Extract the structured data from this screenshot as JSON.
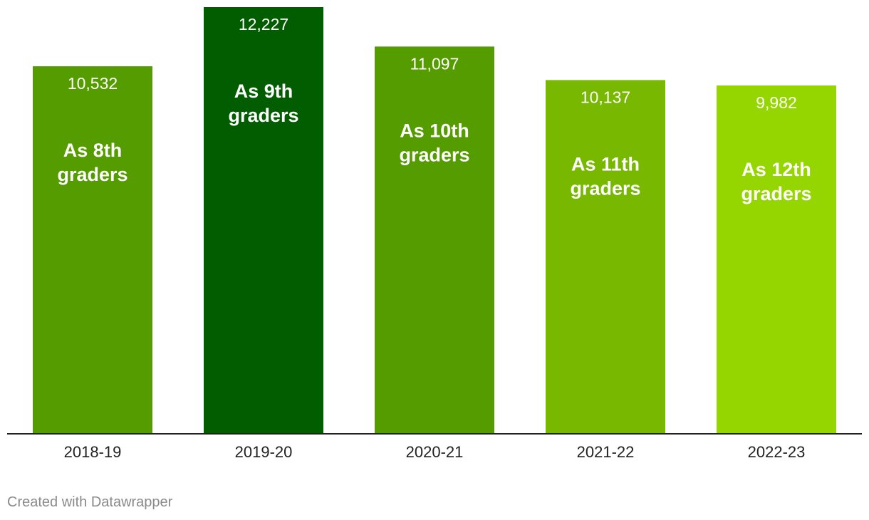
{
  "chart_data": {
    "type": "bar",
    "categories": [
      "2018-19",
      "2019-20",
      "2020-21",
      "2021-22",
      "2022-23"
    ],
    "values": [
      10532,
      12227,
      11097,
      10137,
      9982
    ],
    "value_labels": [
      "10,532",
      "12,227",
      "11,097",
      "10,137",
      "9,982"
    ],
    "bar_annotations": [
      [
        "As 8th",
        "graders"
      ],
      [
        "As 9th",
        "graders"
      ],
      [
        "As 10th",
        "graders"
      ],
      [
        "As 11th",
        "graders"
      ],
      [
        "As 12th",
        "graders"
      ]
    ],
    "bar_colors": [
      "#559c00",
      "#015d00",
      "#559c00",
      "#78b800",
      "#96d600"
    ],
    "ylim": [
      0,
      12227
    ],
    "grid": false,
    "title": "",
    "xlabel": "",
    "ylabel": ""
  },
  "footer": {
    "credit": "Created with Datawrapper"
  }
}
